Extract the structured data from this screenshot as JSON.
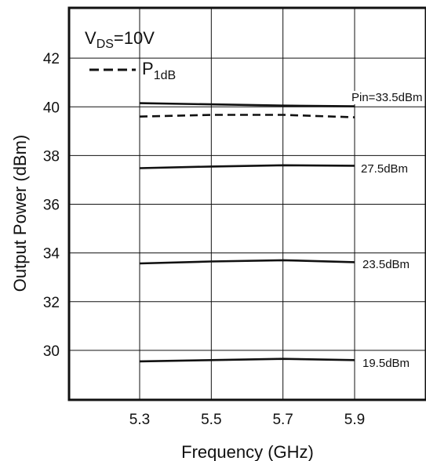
{
  "chart_data": {
    "type": "line",
    "xlabel": "Frequency (GHz)",
    "ylabel": "Output Power (dBm)",
    "xlim": [
      5.0,
      6.1
    ],
    "ylim": [
      28.0,
      44.0
    ],
    "x_ticks": [
      5.3,
      5.5,
      5.7,
      5.9
    ],
    "x_tick_labels": [
      "5.3",
      "5.5",
      "5.7",
      "5.9"
    ],
    "y_ticks": [
      30,
      32,
      34,
      36,
      38,
      40,
      42
    ],
    "y_tick_labels": [
      "30",
      "32",
      "34",
      "36",
      "38",
      "40",
      "42"
    ],
    "grid": true,
    "legend": {
      "condition_main": "V",
      "condition_sub": "DS",
      "condition_value": "=10V",
      "line_main": "P",
      "line_sub": "1dB",
      "placement": "top-left"
    },
    "series": [
      {
        "label": "Pin=33.5dBm",
        "style": "solid",
        "x": [
          5.3,
          5.5,
          5.7,
          5.9
        ],
        "y": [
          40.15,
          40.1,
          40.05,
          40.02
        ]
      },
      {
        "label": "",
        "style": "dashed",
        "x": [
          5.3,
          5.5,
          5.7,
          5.9
        ],
        "y": [
          39.6,
          39.67,
          39.67,
          39.57
        ]
      },
      {
        "label": "27.5dBm",
        "style": "solid",
        "x": [
          5.3,
          5.5,
          5.7,
          5.9
        ],
        "y": [
          37.48,
          37.55,
          37.6,
          37.58
        ]
      },
      {
        "label": "23.5dBm",
        "style": "solid",
        "x": [
          5.3,
          5.5,
          5.7,
          5.9
        ],
        "y": [
          33.57,
          33.65,
          33.7,
          33.62
        ]
      },
      {
        "label": "19.5dBm",
        "style": "solid",
        "x": [
          5.3,
          5.5,
          5.7,
          5.9
        ],
        "y": [
          29.55,
          29.6,
          29.65,
          29.6
        ]
      }
    ]
  },
  "colors": {
    "line": "#111111",
    "grid": "#111111",
    "background": "#ffffff"
  }
}
